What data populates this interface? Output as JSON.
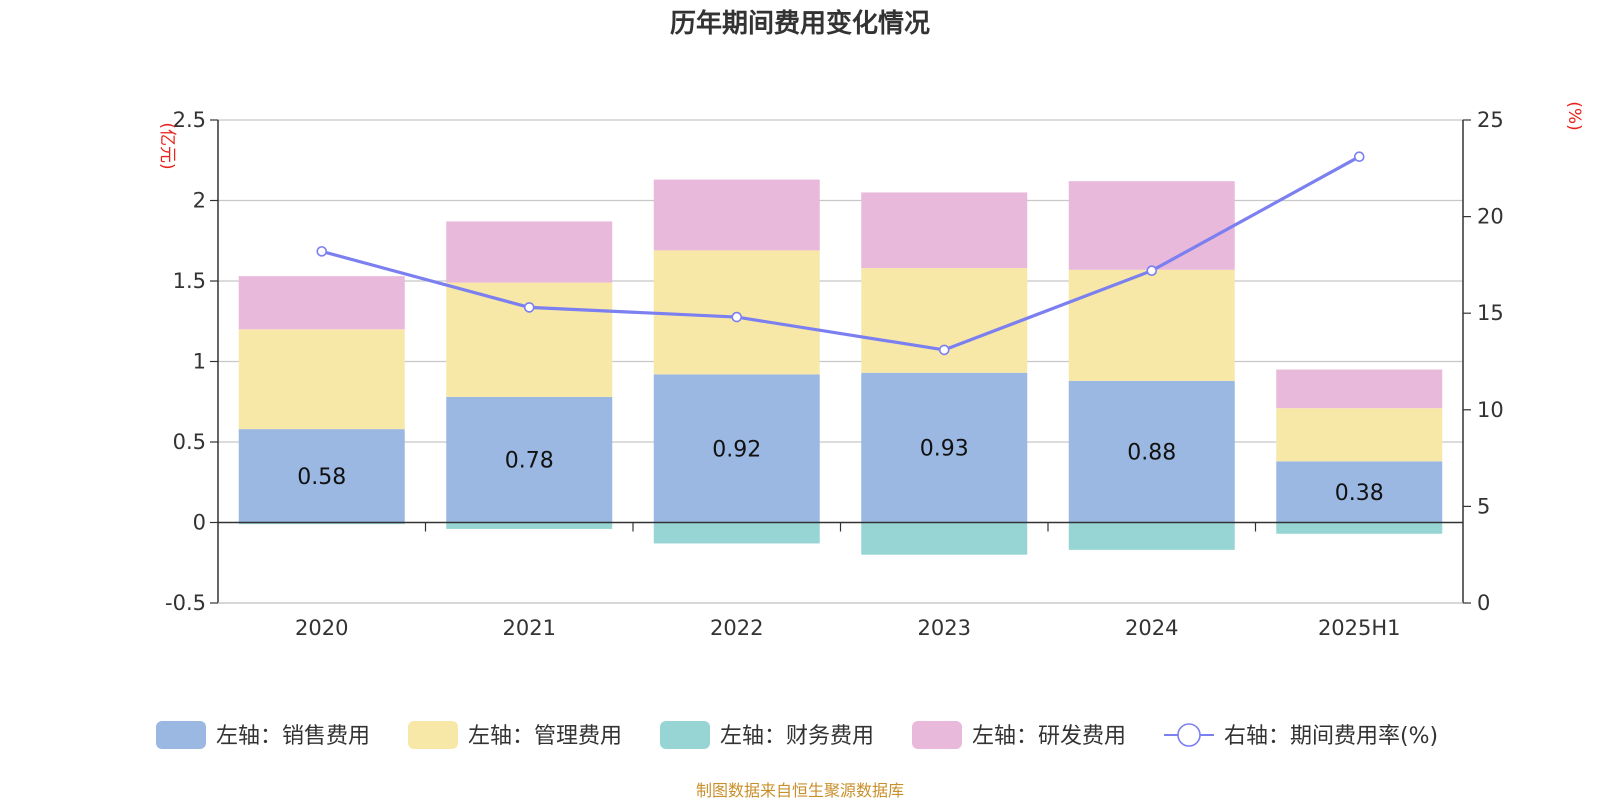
{
  "chart_data": {
    "type": "bar",
    "stacked": true,
    "title": "历年期间费用变化情况",
    "categories": [
      "2020",
      "2021",
      "2022",
      "2023",
      "2024",
      "2025H1"
    ],
    "left_axis": {
      "unit": "(亿元)",
      "ylim": [
        -0.5,
        2.5
      ],
      "ticks": [
        -0.5,
        0,
        0.5,
        1,
        1.5,
        2,
        2.5
      ]
    },
    "right_axis": {
      "unit": "(%)",
      "ylim": [
        0,
        25
      ],
      "ticks": [
        0,
        5,
        10,
        15,
        20,
        25
      ]
    },
    "series": [
      {
        "name": "左轴：销售费用",
        "axis": "left",
        "color": "#9bb8e2",
        "values": [
          0.58,
          0.78,
          0.92,
          0.93,
          0.88,
          0.38
        ],
        "labels": [
          "0.58",
          "0.78",
          "0.92",
          "0.93",
          "0.88",
          "0.38"
        ]
      },
      {
        "name": "左轴：管理费用",
        "axis": "left",
        "color": "#f7e8a7",
        "values": [
          0.62,
          0.71,
          0.77,
          0.65,
          0.69,
          0.33
        ]
      },
      {
        "name": "左轴：财务费用",
        "axis": "left",
        "color": "#97d5d4",
        "values": [
          -0.01,
          -0.04,
          -0.13,
          -0.2,
          -0.17,
          -0.07
        ]
      },
      {
        "name": "左轴：研发费用",
        "axis": "left",
        "color": "#e8b9da",
        "values": [
          0.33,
          0.38,
          0.44,
          0.47,
          0.55,
          0.24
        ]
      },
      {
        "name": "右轴：期间费用率(%)",
        "axis": "right",
        "type": "line",
        "color": "#7b7ff0",
        "values": [
          18.2,
          15.3,
          14.8,
          13.1,
          17.2,
          23.1
        ]
      }
    ],
    "grid": true,
    "legend_position": "bottom",
    "source": "制图数据来自恒生聚源数据库"
  }
}
